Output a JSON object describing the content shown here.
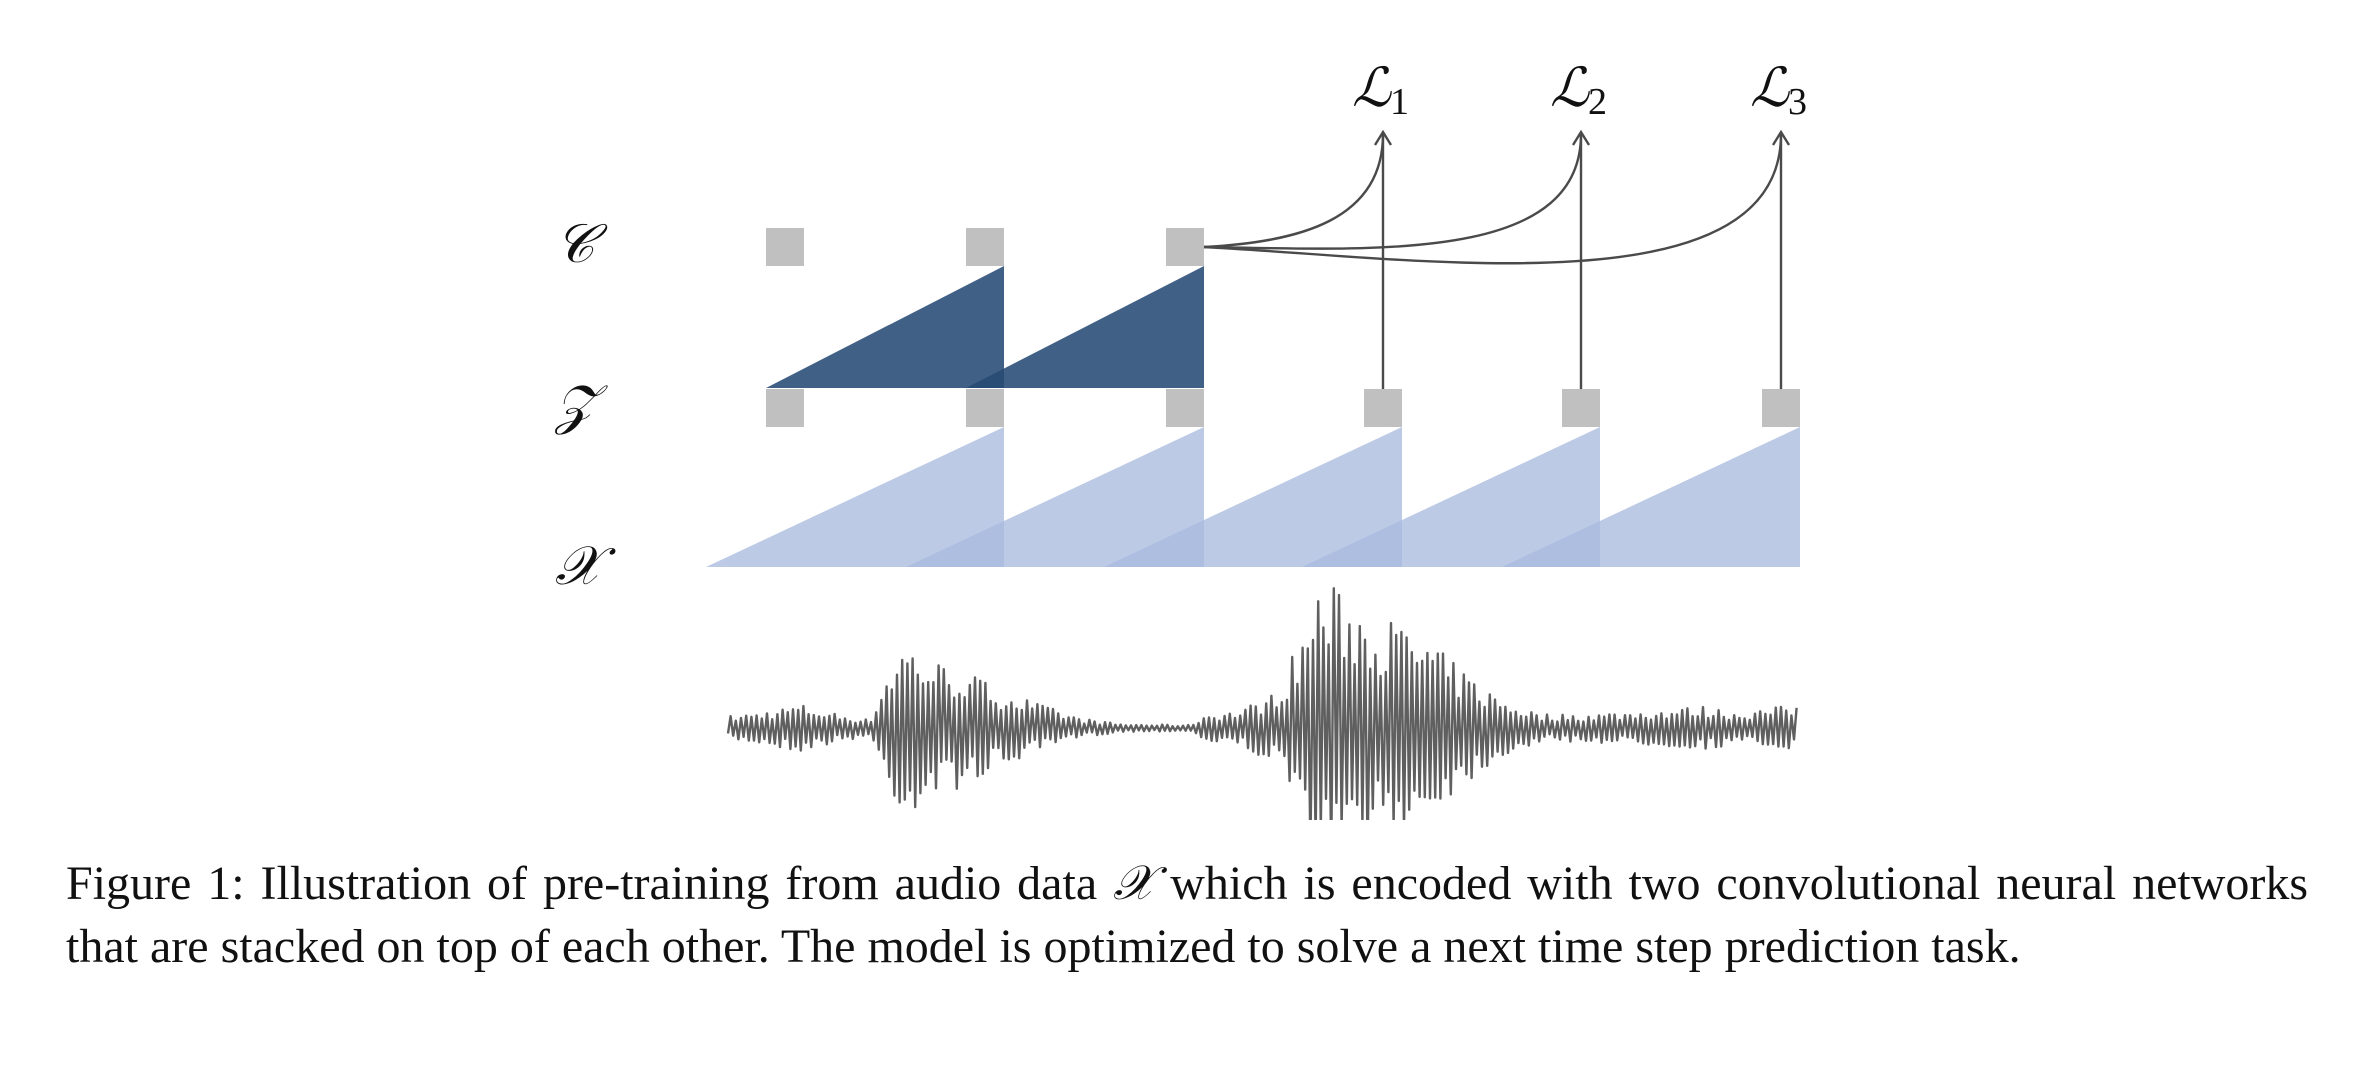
{
  "colors": {
    "node": "#c0c0c0",
    "context_block": "#274a74",
    "encoder_block": "#a9bbdf",
    "arrow": "#4a4a4a",
    "waveform": "#5f5f5f",
    "text": "#111111"
  },
  "diagram": {
    "row_labels": {
      "c": "𝒞",
      "z": "𝒵",
      "x": "𝒳"
    },
    "losses": [
      {
        "symbol": "ℒ",
        "subscript": "1"
      },
      {
        "symbol": "ℒ",
        "subscript": "2"
      },
      {
        "symbol": "ℒ",
        "subscript": "3"
      }
    ],
    "nodes": {
      "c_count": 3,
      "z_count": 6
    }
  },
  "caption": {
    "prefix": "Figure 1:",
    "text_before_symbol": "Illustration of pre-training from audio data",
    "symbol": "𝒳",
    "text_after_symbol": "which is encoded with two convolutional neural networks that are stacked on top of each other. The model is optimized to solve a next time step prediction task."
  }
}
